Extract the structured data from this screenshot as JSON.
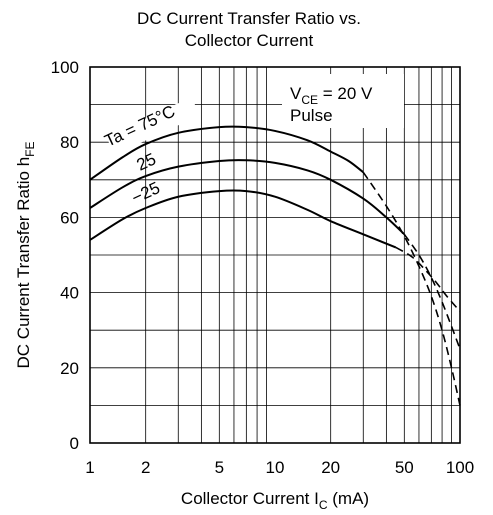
{
  "chart_data": {
    "type": "line",
    "title_lines": [
      "DC Current Transfer Ratio vs.",
      "Collector Current"
    ],
    "xlabel": {
      "main": "Collector Current  I",
      "sub": "C",
      "unit": "  (mA)"
    },
    "ylabel": {
      "main": "DC Current Transfer Ratio  h",
      "sub": "FE"
    },
    "x_scale": "log",
    "xlim": [
      1,
      100
    ],
    "ylim": [
      0,
      100
    ],
    "x_ticks": [
      {
        "value": 1,
        "label": "1"
      },
      {
        "value": 2,
        "label": "2"
      },
      {
        "value": 5,
        "label": "5"
      },
      {
        "value": 10,
        "label": "10"
      },
      {
        "value": 20,
        "label": "20"
      },
      {
        "value": 50,
        "label": "50"
      },
      {
        "value": 100,
        "label": "100"
      }
    ],
    "y_ticks": [
      {
        "value": 0,
        "label": "0"
      },
      {
        "value": 20,
        "label": "20"
      },
      {
        "value": 40,
        "label": "40"
      },
      {
        "value": 60,
        "label": "60"
      },
      {
        "value": 80,
        "label": "80"
      },
      {
        "value": 100,
        "label": "100"
      }
    ],
    "grid": true,
    "conditions": {
      "line1": {
        "main": "V",
        "sub": "CE",
        "rest": " = 20 V"
      },
      "line2": "Pulse"
    },
    "series": [
      {
        "name": "Ta = 75°C",
        "solid": [
          [
            1,
            70
          ],
          [
            1.5,
            76
          ],
          [
            2,
            79.5
          ],
          [
            3,
            82.5
          ],
          [
            5,
            84
          ],
          [
            7,
            84
          ],
          [
            10,
            83
          ],
          [
            15,
            80.5
          ],
          [
            20,
            77.5
          ],
          [
            25,
            75
          ],
          [
            30,
            72
          ]
        ],
        "dashed": [
          [
            30,
            72
          ],
          [
            40,
            63
          ],
          [
            50,
            55
          ],
          [
            60,
            47
          ],
          [
            70,
            39
          ],
          [
            80,
            30
          ],
          [
            90,
            20
          ],
          [
            100,
            10
          ]
        ]
      },
      {
        "name": "25",
        "solid": [
          [
            1,
            62.5
          ],
          [
            1.5,
            68
          ],
          [
            2,
            71
          ],
          [
            3,
            73.5
          ],
          [
            5,
            75
          ],
          [
            7,
            75.2
          ],
          [
            10,
            74.5
          ],
          [
            15,
            72.5
          ],
          [
            20,
            70
          ],
          [
            30,
            65
          ],
          [
            40,
            60
          ],
          [
            50,
            55.5
          ]
        ],
        "dashed": [
          [
            50,
            55.5
          ],
          [
            60,
            50
          ],
          [
            70,
            44
          ],
          [
            80,
            37.5
          ],
          [
            90,
            31
          ],
          [
            100,
            25
          ]
        ]
      },
      {
        "name": "−25",
        "solid": [
          [
            1,
            54
          ],
          [
            1.5,
            59.5
          ],
          [
            2,
            62.5
          ],
          [
            3,
            65.5
          ],
          [
            5,
            67
          ],
          [
            7,
            67
          ],
          [
            10,
            65.5
          ],
          [
            15,
            62
          ],
          [
            20,
            59
          ],
          [
            30,
            55.5
          ],
          [
            45,
            52
          ]
        ],
        "dashed": [
          [
            45,
            52
          ],
          [
            55,
            49.5
          ],
          [
            65,
            46
          ],
          [
            75,
            42.5
          ],
          [
            85,
            39
          ],
          [
            100,
            35
          ]
        ]
      }
    ]
  }
}
